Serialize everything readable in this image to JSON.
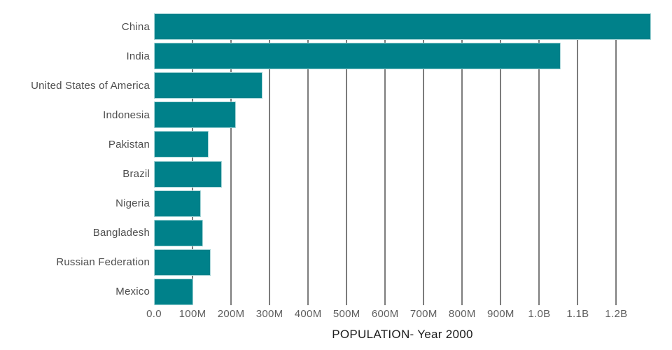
{
  "chart_data": {
    "type": "bar",
    "orientation": "horizontal",
    "title": "POPULATION- Year 2000",
    "categories": [
      "China",
      "India",
      "United States of America",
      "Indonesia",
      "Pakistan",
      "Brazil",
      "Nigeria",
      "Bangladesh",
      "Russian Federation",
      "Mexico"
    ],
    "values_millions": [
      1290,
      1056,
      282,
      212,
      142,
      176,
      121,
      128,
      147,
      102
    ],
    "x_ticks": [
      "0.0",
      "100M",
      "200M",
      "300M",
      "400M",
      "500M",
      "600M",
      "700M",
      "800M",
      "900M",
      "1.0B",
      "1.1B",
      "1.2B"
    ],
    "x_tick_values_millions": [
      0,
      100,
      200,
      300,
      400,
      500,
      600,
      700,
      800,
      900,
      1000,
      1100,
      1200
    ],
    "xlim_millions": [
      0,
      1290
    ],
    "grid": "vertical",
    "legend": "none",
    "colors": {
      "bar": "#00818a",
      "bar_border": "#a9d7d9",
      "gridline": "#7c7c7c",
      "category_label": "#4e4e4e",
      "tick_label": "#5e5e5e",
      "title": "#1c1c1c",
      "background": "#ffffff"
    }
  }
}
